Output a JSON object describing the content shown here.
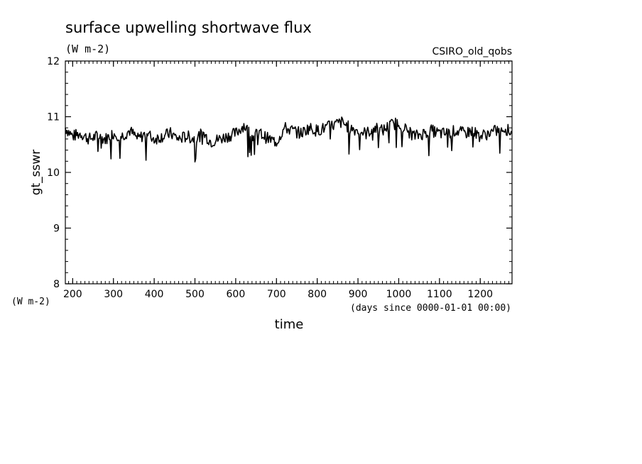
{
  "chart_data": {
    "type": "line",
    "title": "surface upwelling shortwave flux",
    "subtitle": "(W m-2)",
    "dataset_label": "CSIRO_old_qobs",
    "xlabel": "time",
    "x_units": "(days since 0000-01-01 00:00)",
    "ylabel": "gt_sswr",
    "y_units": "(W m-2)",
    "xlim": [
      182,
      1278
    ],
    "ylim": [
      8,
      12
    ],
    "x_ticks": [
      200,
      300,
      400,
      500,
      600,
      700,
      800,
      900,
      1000,
      1100,
      1200
    ],
    "y_ticks": [
      8,
      9,
      10,
      11,
      12
    ],
    "grid": false,
    "series": [
      {
        "x": [
          182,
          200,
          220,
          240,
          260,
          280,
          300,
          320,
          340,
          360,
          380,
          400,
          420,
          440,
          460,
          480,
          500,
          520,
          540,
          560,
          580,
          600,
          620,
          640,
          660,
          680,
          700,
          720,
          740,
          760,
          780,
          800,
          820,
          840,
          860,
          880,
          900,
          920,
          940,
          960,
          980,
          1000,
          1020,
          1040,
          1060,
          1080,
          1100,
          1120,
          1140,
          1160,
          1180,
          1200,
          1220,
          1240,
          1260,
          1278
        ],
        "y": [
          10.8,
          10.65,
          10.7,
          10.6,
          10.65,
          10.6,
          10.7,
          10.65,
          10.75,
          10.6,
          10.7,
          10.6,
          10.65,
          10.7,
          10.6,
          10.65,
          10.6,
          10.7,
          10.55,
          10.6,
          10.65,
          10.7,
          10.85,
          10.65,
          10.7,
          10.6,
          10.55,
          10.8,
          10.75,
          10.7,
          10.8,
          10.75,
          10.8,
          10.85,
          10.9,
          10.8,
          10.75,
          10.7,
          10.8,
          10.75,
          10.85,
          10.9,
          10.75,
          10.65,
          10.7,
          10.75,
          10.7,
          10.7,
          10.75,
          10.7,
          10.75,
          10.65,
          10.7,
          10.75,
          10.8,
          10.7
        ],
        "values_daily_note": ""
      }
    ]
  }
}
